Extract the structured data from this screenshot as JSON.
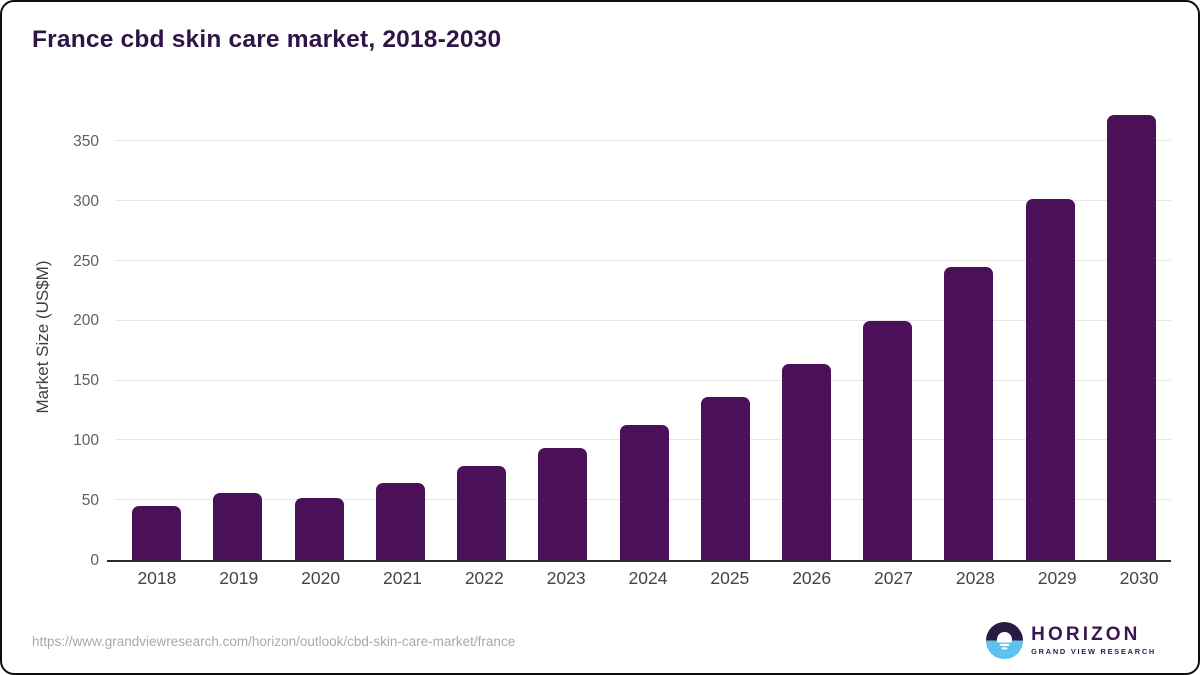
{
  "card": {
    "background": "#ffffff",
    "border_color": "#0d0d0d"
  },
  "chart_data": {
    "type": "bar",
    "title": "France cbd skin care market, 2018-2030",
    "categories": [
      "2018",
      "2019",
      "2020",
      "2021",
      "2022",
      "2023",
      "2024",
      "2025",
      "2026",
      "2027",
      "2028",
      "2029",
      "2030"
    ],
    "values": [
      45,
      56,
      52,
      64,
      79,
      94,
      113,
      136,
      164,
      200,
      245,
      302,
      372
    ],
    "xlabel": "",
    "ylabel": "Market Size (US$M)",
    "ylim": [
      0,
      383
    ],
    "yticks": [
      0,
      50,
      100,
      150,
      200,
      250,
      300,
      350
    ],
    "grid": "horizontal",
    "legend": "none",
    "bar_color": "#4a1158",
    "title_color": "#2f1547",
    "gridline_color": "#e6e6e6",
    "axis_line_color": "#2b2b2b",
    "ytick_color": "#5f5f5f",
    "xtick_color": "#454545"
  },
  "footer": {
    "source_url": "https://www.grandviewresearch.com/horizon/outlook/cbd-skin-care-market/france",
    "logo": {
      "name": "HORIZON",
      "subtitle": "GRAND VIEW RESEARCH",
      "text_color": "#3a1650",
      "mark_dark": "#2b1a43",
      "mark_blue": "#5bc3ee",
      "mark_sun": "#ffffff"
    }
  }
}
